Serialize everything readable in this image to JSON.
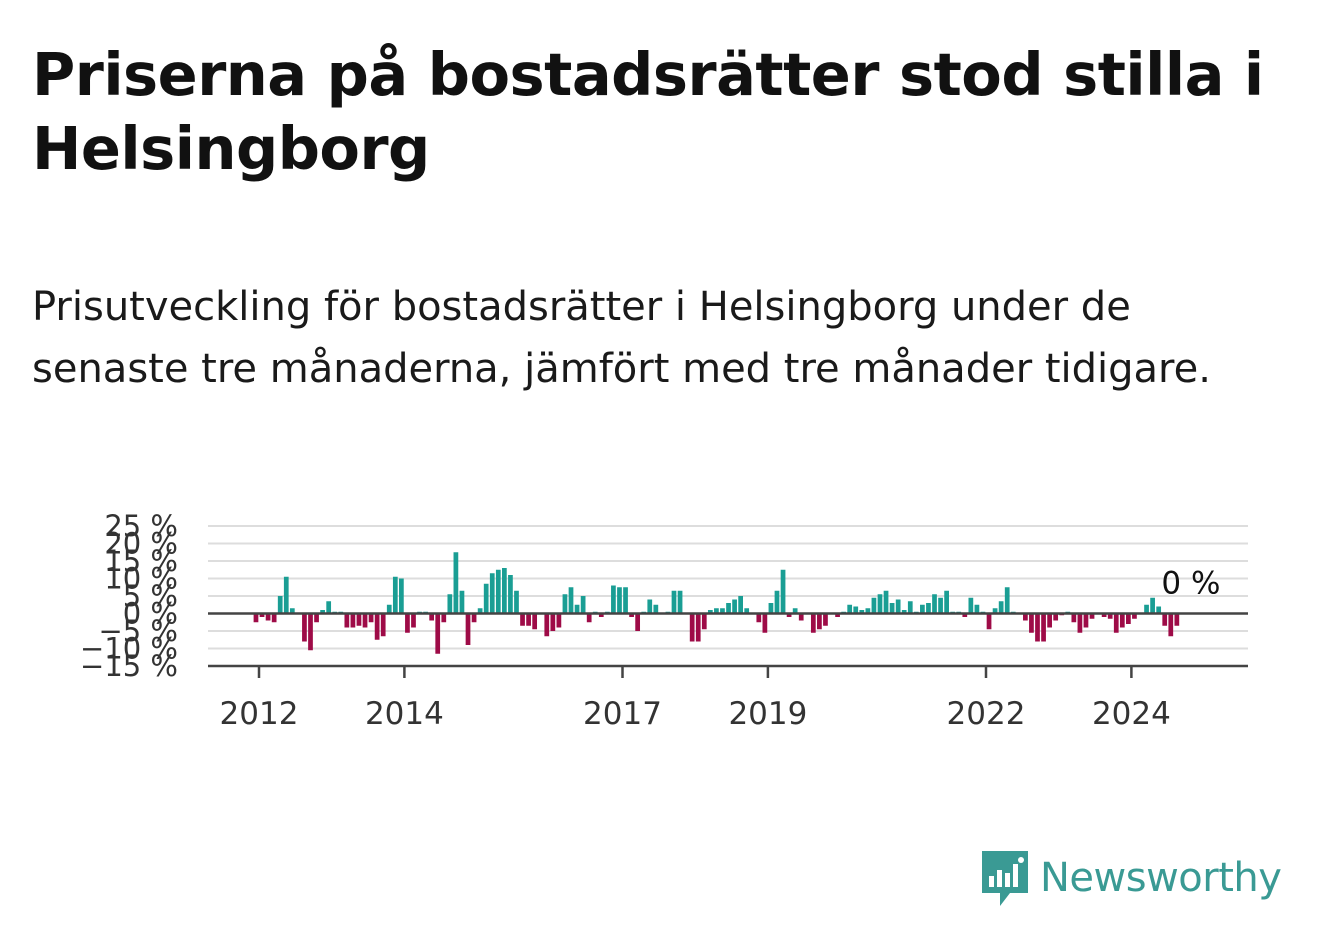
{
  "header": {
    "title": "Priserna på bostadsrätter stod stilla i Helsingborg",
    "subtitle": "Prisutveckling för bostadsrätter i Helsingborg under de senaste tre månaderna, jämfört med tre månader tidigare."
  },
  "brand": {
    "name": "Newsworthy",
    "icon": "newsworthy-logo-icon"
  },
  "colors": {
    "positive": "#1a9e94",
    "negative": "#9e0b47",
    "grid": "#dddddd",
    "axis": "#444444"
  },
  "chart_data": {
    "type": "bar",
    "y_tick_labels": [
      "−15 %",
      "−10 %",
      "−5 %",
      "0 %",
      "5 %",
      "10 %",
      "15 %",
      "20 %",
      "25 %"
    ],
    "x_tick_labels": [
      "2012",
      "2014",
      "2017",
      "2019",
      "2022",
      "2024"
    ],
    "ylim": [
      -15,
      25
    ],
    "last_value_label": "0 %",
    "series": [
      {
        "start": "2011-12",
        "frequency": "monthly",
        "values": [
          -2.5,
          -1,
          -2,
          -2.5,
          5,
          10.5,
          1.5,
          0,
          -8,
          -10.5,
          -2.5,
          1,
          3.5,
          0.5,
          0.5,
          -4,
          -4,
          -3.5,
          -4,
          -2.5,
          -7.5,
          -6.5,
          2.5,
          10.5,
          10,
          -5.5,
          -4,
          0.5,
          0.5,
          -2,
          -11.5,
          -2.5,
          5.5,
          17.5,
          6.5,
          -9,
          -2.5,
          1.5,
          8.5,
          11.5,
          12.5,
          13,
          11,
          6.5,
          -3.5,
          -3.5,
          -4.5,
          0,
          -6.5,
          -5,
          -4,
          5.5,
          7.5,
          2.5,
          5,
          -2.5,
          0.5,
          -1,
          0.5,
          8,
          7.5,
          7.5,
          -1,
          -5,
          0.5,
          4,
          2.5,
          0,
          0.5,
          6.5,
          6.5,
          0,
          -8,
          -8,
          -4.5,
          1,
          1.5,
          1.5,
          3,
          4,
          5,
          1.5,
          0,
          -2.5,
          -5.5,
          3,
          6.5,
          12.5,
          -1,
          1.5,
          -2,
          0,
          -5.5,
          -4.5,
          -3.5,
          0,
          -1,
          0.5,
          2.5,
          2,
          1,
          1.5,
          4.5,
          5.5,
          6.5,
          3,
          4,
          1,
          3.5,
          0.5,
          2.5,
          3,
          5.5,
          4.5,
          6.5,
          0.5,
          0.5,
          -1,
          4.5,
          2.5,
          0.5,
          -4.5,
          1.5,
          3.5,
          7.5,
          0.5,
          0,
          -2,
          -5.5,
          -8,
          -8,
          -4,
          -2,
          -0.5,
          0.5,
          -2.5,
          -5.5,
          -4,
          -1.5,
          0,
          -1,
          -1.5,
          -5.5,
          -4,
          -3,
          -1.5,
          0,
          2.5,
          4.5,
          2,
          -3.5,
          -6.5,
          -3.5,
          0
        ]
      }
    ]
  }
}
